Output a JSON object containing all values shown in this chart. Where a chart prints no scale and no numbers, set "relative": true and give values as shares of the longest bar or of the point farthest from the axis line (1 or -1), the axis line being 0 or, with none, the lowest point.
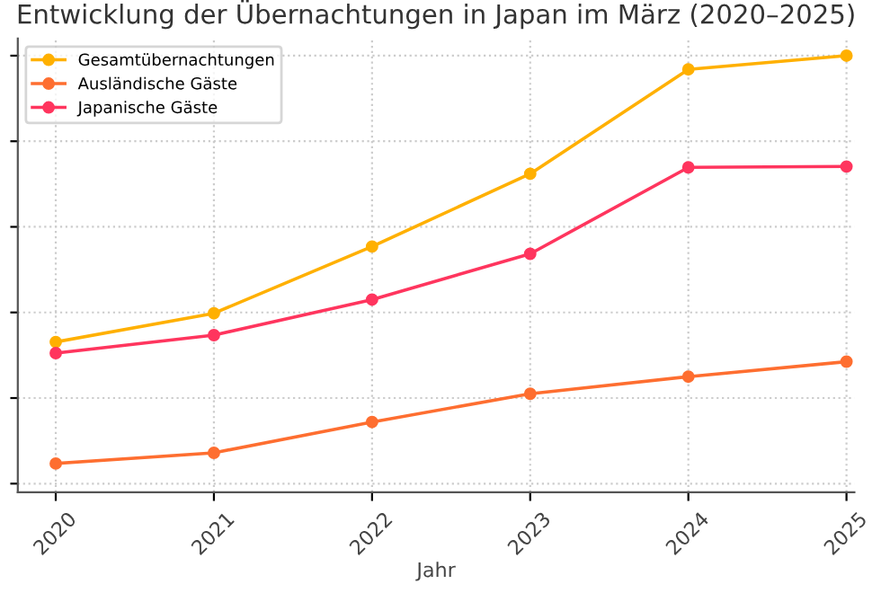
{
  "chart_data": {
    "type": "line",
    "title": "Entwicklung der Übernachtungen in Japan im März (2020–2025)",
    "xlabel": "Jahr",
    "categories": [
      "2020",
      "2021",
      "2022",
      "2023",
      "2024",
      "2025"
    ],
    "relative": true,
    "grid": true,
    "legend": "top left",
    "marker": "circle",
    "line_style": "solid",
    "series": [
      {
        "name": "Gesamtübernachtungen",
        "color": "#ffb000",
        "values": [
          0.331,
          0.398,
          0.554,
          0.724,
          0.968,
          1
        ]
      },
      {
        "name": "Ausländische Gäste",
        "color": "#fe6e30",
        "values": [
          0.047,
          0.072,
          0.144,
          0.21,
          0.25,
          0.285
        ]
      },
      {
        "name": "Japanische Gäste",
        "color": "#ff355e",
        "values": [
          0.305,
          0.347,
          0.43,
          0.537,
          0.739,
          0.741
        ]
      }
    ]
  }
}
